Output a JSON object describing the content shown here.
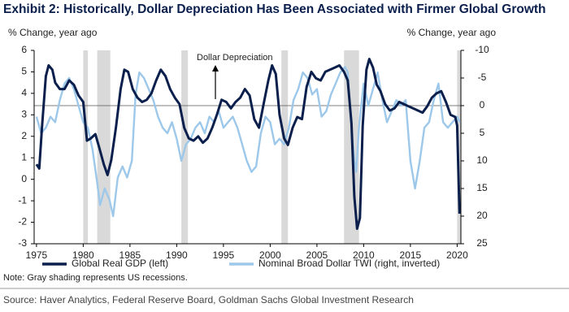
{
  "chart_data": {
    "type": "line",
    "title": "Exhibit 2: Historically, Dollar Depreciation Has Been Associated with Firmer Global Growth",
    "y_label": "% Change,  year ago",
    "y2_label": "% Change,  year ago",
    "annotation": "Dollar Depreciation",
    "note": "Note: Gray shading represents US recessions.",
    "source": "Source: Haver Analytics, Federal Reserve Board, Goldman Sachs Global Investment Research",
    "xlim": [
      1974.75,
      2020.4
    ],
    "xticks": [
      1975,
      1980,
      1985,
      1990,
      1995,
      2000,
      2005,
      2010,
      2015,
      2020
    ],
    "ylim": [
      -3,
      6
    ],
    "yticks": [
      -3,
      -2,
      -1,
      0,
      1,
      2,
      3,
      4,
      5,
      6
    ],
    "y2lim": [
      -10,
      25
    ],
    "y2ticks": [
      -10,
      -5,
      0,
      5,
      10,
      15,
      20,
      25
    ],
    "y2_inverted": true,
    "y2_reference_line": 0,
    "recessions": [
      [
        1980.0,
        1980.5
      ],
      [
        1981.5,
        1982.9
      ],
      [
        1990.5,
        1991.2
      ],
      [
        2001.2,
        2001.9
      ],
      [
        2007.9,
        2009.5
      ],
      [
        2020.0,
        2020.4
      ]
    ],
    "series": [
      {
        "name": "Global Real GDP (left)",
        "color": "#0b1f4d",
        "axis": "y",
        "x": [
          1975.0,
          1975.3,
          1975.6,
          1976.0,
          1976.3,
          1976.7,
          1977.0,
          1977.5,
          1978.0,
          1978.5,
          1979.0,
          1979.5,
          1980.0,
          1980.4,
          1980.8,
          1981.3,
          1981.7,
          1982.2,
          1982.6,
          1983.0,
          1983.5,
          1984.0,
          1984.4,
          1984.8,
          1985.3,
          1985.8,
          1986.3,
          1986.8,
          1987.3,
          1987.8,
          1988.3,
          1988.8,
          1989.3,
          1989.8,
          1990.3,
          1990.8,
          1991.3,
          1991.8,
          1992.3,
          1992.8,
          1993.3,
          1993.8,
          1994.3,
          1994.8,
          1995.3,
          1995.8,
          1996.3,
          1996.8,
          1997.3,
          1997.8,
          1998.3,
          1998.8,
          1999.3,
          1999.8,
          2000.2,
          2000.6,
          2001.0,
          2001.5,
          2001.9,
          2002.4,
          2002.9,
          2003.4,
          2003.9,
          2004.4,
          2004.9,
          2005.4,
          2005.9,
          2006.4,
          2006.9,
          2007.4,
          2007.9,
          2008.3,
          2008.7,
          2009.0,
          2009.3,
          2009.6,
          2009.9,
          2010.3,
          2010.6,
          2011.0,
          2011.4,
          2011.8,
          2012.3,
          2012.8,
          2013.3,
          2013.8,
          2014.3,
          2014.8,
          2015.3,
          2015.8,
          2016.3,
          2016.8,
          2017.3,
          2017.8,
          2018.3,
          2018.8,
          2019.3,
          2019.8,
          2020.0,
          2020.25
        ],
        "values": [
          0.7,
          0.5,
          2.5,
          4.8,
          5.3,
          5.1,
          4.5,
          4.2,
          4.2,
          4.6,
          4.4,
          3.9,
          3.6,
          1.8,
          1.9,
          2.1,
          1.5,
          0.7,
          0.2,
          0.9,
          2.4,
          4.2,
          5.1,
          5.0,
          4.2,
          3.8,
          3.6,
          3.7,
          4.0,
          4.6,
          5.1,
          4.8,
          4.2,
          3.8,
          3.5,
          2.4,
          1.9,
          1.8,
          2.0,
          1.7,
          1.9,
          2.4,
          3.0,
          3.7,
          3.6,
          3.3,
          3.6,
          3.8,
          4.2,
          3.9,
          2.8,
          2.4,
          3.5,
          4.6,
          5.3,
          4.9,
          3.0,
          1.9,
          1.6,
          2.4,
          2.9,
          2.8,
          4.3,
          5.0,
          4.7,
          4.6,
          5.0,
          5.1,
          5.2,
          5.3,
          5.0,
          4.6,
          2.6,
          -0.8,
          -2.3,
          -1.8,
          2.5,
          5.1,
          5.6,
          5.2,
          4.4,
          4.1,
          3.5,
          3.2,
          3.3,
          3.6,
          3.5,
          3.4,
          3.3,
          3.2,
          3.1,
          3.4,
          3.8,
          4.0,
          4.1,
          3.6,
          3.0,
          2.9,
          2.5,
          -1.6
        ]
      },
      {
        "name": "Nominal Broad Dollar TWI (right, inverted)",
        "color": "#9dc8ea",
        "axis": "y2",
        "x": [
          1975.0,
          1975.5,
          1976.0,
          1976.5,
          1977.0,
          1977.5,
          1978.0,
          1978.5,
          1979.0,
          1979.5,
          1980.0,
          1980.5,
          1981.0,
          1981.5,
          1981.8,
          1982.3,
          1982.8,
          1983.2,
          1983.7,
          1984.2,
          1984.7,
          1985.2,
          1985.6,
          1986.0,
          1986.5,
          1987.0,
          1987.5,
          1988.0,
          1988.5,
          1989.0,
          1989.5,
          1990.0,
          1990.5,
          1991.0,
          1991.5,
          1992.0,
          1992.5,
          1993.0,
          1993.5,
          1994.0,
          1994.5,
          1995.0,
          1995.5,
          1996.0,
          1996.5,
          1997.0,
          1997.5,
          1998.0,
          1998.5,
          1999.0,
          1999.5,
          2000.0,
          2000.5,
          2001.0,
          2001.5,
          2002.0,
          2002.5,
          2003.0,
          2003.5,
          2004.0,
          2004.5,
          2005.0,
          2005.5,
          2006.0,
          2006.5,
          2007.0,
          2007.5,
          2008.0,
          2008.3,
          2008.6,
          2009.0,
          2009.2,
          2009.5,
          2010.0,
          2010.5,
          2011.0,
          2011.5,
          2012.0,
          2012.5,
          2013.0,
          2013.5,
          2014.0,
          2014.5,
          2015.0,
          2015.5,
          2016.0,
          2016.5,
          2017.0,
          2017.5,
          2018.0,
          2018.5,
          2019.0,
          2019.5,
          2020.0,
          2020.3
        ],
        "values": [
          2,
          5,
          4,
          2,
          3,
          -1,
          -4,
          -5,
          -3,
          0,
          3,
          4,
          8,
          14,
          18,
          15,
          17,
          20,
          13,
          11,
          13,
          10,
          -2,
          -6,
          -5,
          -3,
          -1,
          2,
          4,
          5,
          3,
          6,
          10,
          7,
          6,
          4,
          3,
          5,
          2,
          3,
          1,
          4,
          3,
          2,
          4,
          7,
          10,
          12,
          11,
          5,
          2,
          3,
          7,
          6,
          7,
          4,
          -1,
          -3,
          -6,
          -5,
          -2,
          -3,
          2,
          1,
          -2,
          -4,
          -6,
          -7,
          -6,
          2,
          10,
          12,
          4,
          -4,
          0,
          -3,
          -6,
          -1,
          3,
          1,
          -1,
          0,
          -1,
          10,
          15,
          10,
          4,
          3,
          -1,
          -4,
          3,
          4,
          3,
          2,
          3
        ]
      }
    ]
  }
}
